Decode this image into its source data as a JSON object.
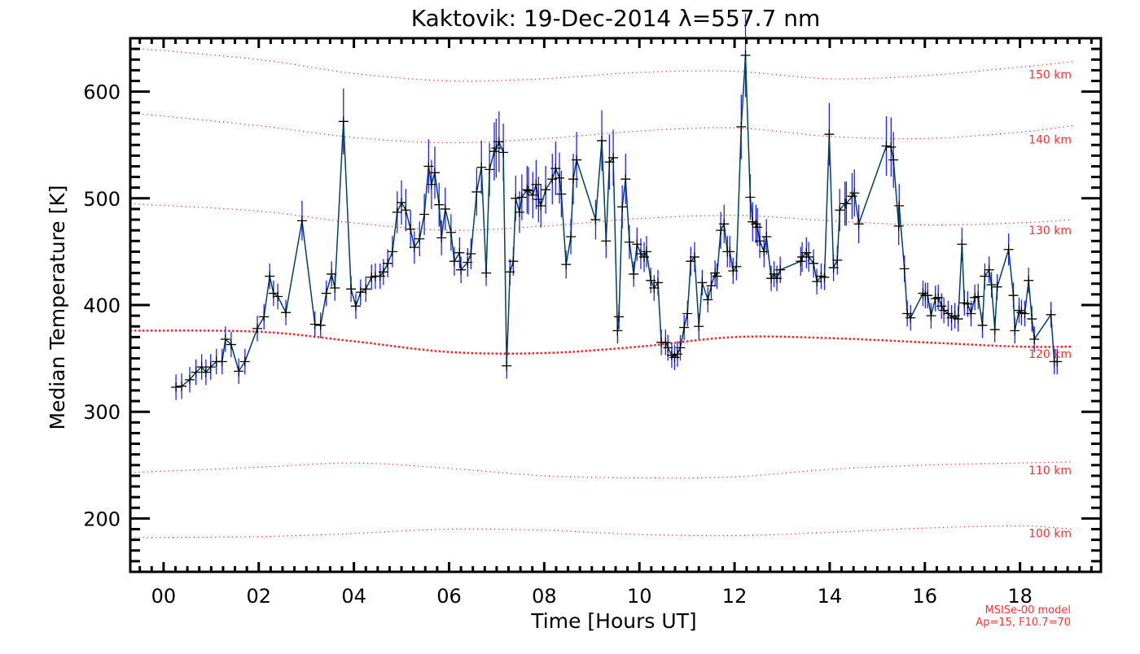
{
  "chart_data": {
    "type": "line",
    "title": "Kaktovik: 19-Dec-2014 λ=557.7 nm",
    "xlabel": "Time [Hours UT]",
    "ylabel": "Median Temperature [K]",
    "xlim": [
      -0.7,
      19.7
    ],
    "ylim": [
      150,
      650
    ],
    "x_ticks": [
      0,
      2,
      4,
      6,
      8,
      10,
      12,
      14,
      16,
      18
    ],
    "x_tick_labels": [
      "00",
      "02",
      "04",
      "06",
      "08",
      "10",
      "12",
      "14",
      "16",
      "18"
    ],
    "y_ticks": [
      200,
      300,
      400,
      500,
      600
    ],
    "y_tick_labels": [
      "200",
      "300",
      "400",
      "500",
      "600"
    ],
    "grid": false,
    "series": [
      {
        "name": "Median Temperature",
        "color": "#004060",
        "marker": "plus",
        "marker_color": "#000000",
        "error_color": "#2020ff",
        "typical_error_K": 12,
        "x": [
          0.26,
          0.38,
          0.55,
          0.68,
          0.8,
          0.89,
          0.99,
          1.11,
          1.23,
          1.3,
          1.42,
          1.58,
          1.71,
          1.97,
          2.11,
          2.23,
          2.31,
          2.4,
          2.57,
          2.91,
          3.18,
          3.3,
          3.42,
          3.53,
          3.6,
          3.78,
          3.94,
          4.04,
          4.14,
          4.25,
          4.37,
          4.45,
          4.55,
          4.62,
          4.71,
          4.81,
          4.91,
          5.0,
          5.09,
          5.19,
          5.27,
          5.38,
          5.48,
          5.57,
          5.63,
          5.7,
          5.79,
          5.84,
          5.92,
          6.04,
          6.11,
          6.22,
          6.25,
          6.39,
          6.46,
          6.58,
          6.68,
          6.78,
          6.85,
          6.95,
          6.99,
          7.05,
          7.14,
          7.21,
          7.28,
          7.35,
          7.4,
          7.48,
          7.53,
          7.64,
          7.67,
          7.76,
          7.83,
          7.88,
          7.93,
          8.03,
          8.17,
          8.24,
          8.32,
          8.36,
          8.46,
          8.56,
          8.61,
          8.68,
          9.08,
          9.21,
          9.3,
          9.37,
          9.45,
          9.54,
          9.57,
          9.64,
          9.71,
          9.79,
          9.88,
          9.95,
          10.03,
          10.1,
          10.15,
          10.24,
          10.31,
          10.39,
          10.46,
          10.55,
          10.6,
          10.68,
          10.74,
          10.8,
          10.86,
          10.94,
          11.01,
          11.08,
          11.16,
          11.25,
          11.32,
          11.44,
          11.51,
          11.59,
          11.63,
          11.71,
          11.78,
          11.85,
          11.9,
          11.97,
          12.04,
          12.14,
          12.23,
          12.33,
          12.38,
          12.45,
          12.48,
          12.53,
          12.62,
          12.67,
          12.77,
          12.83,
          12.89,
          12.96,
          13.39,
          13.42,
          13.51,
          13.56,
          13.66,
          13.73,
          13.82,
          13.89,
          13.99,
          14.08,
          14.16,
          14.21,
          14.32,
          14.35,
          14.47,
          14.52,
          14.61,
          15.19,
          15.29,
          15.34,
          15.45,
          15.46,
          15.57,
          15.63,
          15.7,
          15.96,
          16.01,
          16.06,
          16.13,
          16.22,
          16.28,
          16.35,
          16.4,
          16.49,
          16.56,
          16.63,
          16.7,
          16.78,
          16.83,
          16.9,
          16.97,
          17.05,
          17.12,
          17.21,
          17.26,
          17.35,
          17.4,
          17.47,
          17.52,
          17.76,
          17.86,
          17.89,
          17.98,
          18.03,
          18.1,
          18.18,
          18.25,
          18.3,
          18.65,
          18.72,
          18.78
        ],
        "y": [
          323,
          324,
          330,
          337,
          342,
          337,
          342,
          347,
          347,
          368,
          363,
          338,
          347,
          378,
          389,
          427,
          411,
          408,
          393,
          479,
          382,
          381,
          411,
          429,
          416,
          572,
          415,
          399,
          412,
          415,
          426,
          427,
          427,
          431,
          439,
          450,
          487,
          496,
          489,
          471,
          454,
          462,
          485,
          530,
          513,
          524,
          494,
          463,
          490,
          468,
          441,
          449,
          433,
          440,
          448,
          506,
          529,
          430,
          527,
          544,
          547,
          553,
          543,
          343,
          431,
          441,
          500,
          487,
          501,
          508,
          507,
          503,
          513,
          499,
          493,
          508,
          518,
          528,
          519,
          504,
          438,
          464,
          518,
          536,
          480,
          554,
          460,
          534,
          538,
          376,
          389,
          492,
          518,
          459,
          429,
          457,
          448,
          445,
          450,
          423,
          416,
          421,
          365,
          365,
          360,
          353,
          351,
          354,
          360,
          379,
          392,
          441,
          445,
          380,
          421,
          405,
          418,
          430,
          427,
          470,
          476,
          450,
          450,
          432,
          436,
          567,
          634,
          501,
          478,
          476,
          473,
          460,
          450,
          464,
          425,
          429,
          425,
          433,
          441,
          445,
          449,
          445,
          439,
          422,
          427,
          426,
          560,
          435,
          442,
          489,
          495,
          495,
          502,
          505,
          476,
          549,
          548,
          536,
          474,
          493,
          434,
          392,
          388,
          411,
          409,
          409,
          390,
          406,
          407,
          399,
          395,
          392,
          388,
          390,
          387,
          457,
          402,
          401,
          392,
          407,
          408,
          381,
          427,
          433,
          419,
          377,
          417,
          452,
          409,
          376,
          395,
          393,
          392,
          423,
          387,
          368,
          391,
          347,
          347
        ]
      }
    ],
    "model_curves": {
      "color": "#ff2020",
      "x": [
        -0.7,
        2,
        4,
        6,
        8,
        10,
        12,
        14,
        16,
        18,
        19.1
      ],
      "curves": [
        {
          "label": "150 km",
          "y": [
            641,
            630,
            617,
            610,
            612,
            618,
            619,
            612,
            615,
            623,
            628
          ]
        },
        {
          "label": "140 km",
          "y": [
            580,
            568,
            557,
            552,
            556,
            563,
            566,
            558,
            556,
            562,
            568
          ]
        },
        {
          "label": "130 km",
          "y": [
            495,
            488,
            477,
            470,
            474,
            481,
            484,
            479,
            475,
            477,
            480
          ]
        },
        {
          "label": "120 km",
          "y": [
            376,
            375,
            366,
            356,
            355,
            361,
            370,
            369,
            365,
            361,
            361
          ]
        },
        {
          "label": "110 km",
          "y": [
            243,
            248,
            252,
            247,
            240,
            238,
            239,
            246,
            250,
            252,
            253
          ]
        },
        {
          "label": "100 km",
          "y": [
            182,
            183,
            186,
            190,
            189,
            185,
            184,
            187,
            191,
            193,
            190
          ]
        }
      ]
    },
    "annotations": [
      "MSISe-00 model",
      "Ap=15, F10.7=70"
    ]
  }
}
